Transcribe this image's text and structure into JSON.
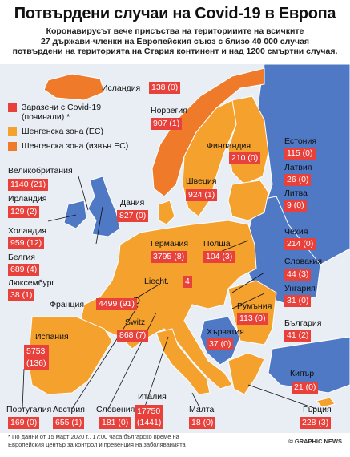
{
  "title": "Потвърдени случаи на Covid-19 в Европа",
  "subtitle_lines": [
    "Коронавирусът вече присъства на територииите на всичките",
    "27 държави-членки на Европейския съюз с близо 40 000 случая",
    "потвърдени на територията на Стария континент и над 1200 смъртни случая."
  ],
  "legend": {
    "infected": "Заразени с Covid-19 (починали) *",
    "schengen_eu": "Шенгенска зона (ЕС)",
    "schengen_non_eu": "Шенгенска зона (извън ЕС)"
  },
  "colors": {
    "infected": "#e8413c",
    "schengen_eu": "#f5a12e",
    "schengen_non_eu": "#ee7a2a",
    "other_country": "#4f78c5",
    "sea": "#e8eef4",
    "border": "#ffffff"
  },
  "countries": {
    "iceland": {
      "name": "Исландия",
      "value": "138 (0)"
    },
    "norway": {
      "name": "Норвегия",
      "value": "907 (1)"
    },
    "finland": {
      "name": "Финландия",
      "value": "210 (0)"
    },
    "estonia": {
      "name": "Естония",
      "value": "115 (0)"
    },
    "latvia": {
      "name": "Латвия",
      "value": "26 (0)"
    },
    "lithuania": {
      "name": "Литва",
      "value": "9 (0)"
    },
    "uk": {
      "name": "Великобритания",
      "value": "1140 (21)"
    },
    "ireland": {
      "name": "Ирландия",
      "value": "129 (2)"
    },
    "sweden": {
      "name": "Швеция",
      "value": "924 (1)"
    },
    "denmark": {
      "name": "Дания",
      "value": "827 (0)"
    },
    "netherlands": {
      "name": "Холандия",
      "value": "959 (12)"
    },
    "belgium": {
      "name": "Белгия",
      "value": "689 (4)"
    },
    "luxembourg": {
      "name": "Люксембург",
      "value": "38 (1)"
    },
    "germany": {
      "name": "Германия",
      "value": "3795 (8)"
    },
    "poland": {
      "name": "Полша",
      "value": "104 (3)"
    },
    "czechia": {
      "name": "Чехия",
      "value": "214 (0)"
    },
    "slovakia": {
      "name": "Словакия",
      "value": "44 (3)"
    },
    "hungary": {
      "name": "Унгария",
      "value": "31 (0)"
    },
    "liechtenstein": {
      "name": "Liecht.",
      "value": "4"
    },
    "france": {
      "name": "Франция",
      "value": "4499 (91)"
    },
    "switzerland": {
      "name": "Switz",
      "value": "868 (7)"
    },
    "romania": {
      "name": "Румъния",
      "value": "113 (0)"
    },
    "croatia": {
      "name": "Хърватия",
      "value": "37 (0)"
    },
    "bulgaria": {
      "name": "България",
      "value": "41 (2)"
    },
    "spain": {
      "name": "Испания",
      "value_line1": "5753",
      "value_line2": "(136)"
    },
    "cyprus": {
      "name": "Кипър",
      "value": "21 (0)"
    },
    "portugal": {
      "name": "Португалия",
      "value": "169 (0)"
    },
    "austria": {
      "name": "Австрия",
      "value": "655 (1)"
    },
    "slovenia": {
      "name": "Словения",
      "value": "181 (0)"
    },
    "italy": {
      "name": "Италия",
      "value_line1": "17750",
      "value_line2": "(1441)"
    },
    "malta": {
      "name": "Малта",
      "value": "18 (0)"
    },
    "greece": {
      "name": "Гърция",
      "value": "228 (3)"
    }
  },
  "footnote_lines": [
    "* По данни от 15 март 2020 г., 17:00 часа българско време на",
    "Европейския център за контрол и превенция на заболяванията"
  ],
  "credit": "© GRAPHIC NEWS"
}
